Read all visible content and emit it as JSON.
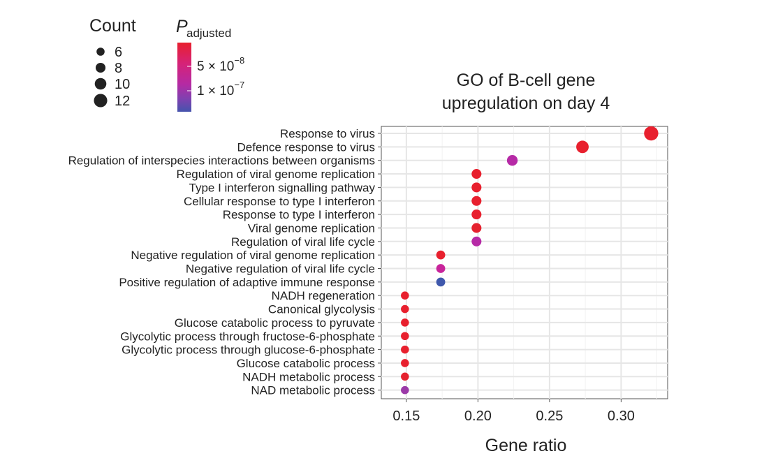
{
  "chart_data": {
    "type": "scatter",
    "title_lines": [
      "GO of B-cell gene",
      "upregulation on day 4"
    ],
    "xlabel": "Gene ratio",
    "ylabel": "",
    "xlim": [
      0.1325,
      0.3325
    ],
    "x_ticks": [
      0.15,
      0.2,
      0.25,
      0.3
    ],
    "x_tick_labels": [
      "0.15",
      "0.20",
      "0.25",
      "0.30"
    ],
    "grid": true,
    "legend_size": {
      "title": "Count",
      "entries": [
        {
          "label": "6",
          "count": 6
        },
        {
          "label": "8",
          "count": 8
        },
        {
          "label": "10",
          "count": 10
        },
        {
          "label": "12",
          "count": 12
        }
      ]
    },
    "legend_color": {
      "title_main": "P",
      "title_sub": "adjusted",
      "tick1": {
        "coef": "5 × 10",
        "exp": "−8",
        "value": 5e-08
      },
      "tick2": {
        "coef": "1 × 10",
        "exp": "−7",
        "value": 1e-07
      },
      "colors": [
        "#e8202e",
        "#d0237e",
        "#b62aa6",
        "#8a3fb0",
        "#4753ad"
      ]
    },
    "terms": [
      {
        "label": "Response to virus",
        "gene_ratio": 0.321,
        "count": 13,
        "color": "#e8202e"
      },
      {
        "label": "Defence response to virus",
        "gene_ratio": 0.273,
        "count": 11,
        "color": "#e8202e"
      },
      {
        "label": "Regulation of interspecies interactions between organisms",
        "gene_ratio": 0.224,
        "count": 9,
        "color": "#b62aa6"
      },
      {
        "label": "Regulation of viral genome replication",
        "gene_ratio": 0.199,
        "count": 8,
        "color": "#e8202e"
      },
      {
        "label": "Type I interferon signalling pathway",
        "gene_ratio": 0.199,
        "count": 8,
        "color": "#e8202e"
      },
      {
        "label": "Cellular response to type I interferon",
        "gene_ratio": 0.199,
        "count": 8,
        "color": "#e8202e"
      },
      {
        "label": "Response to type I interferon",
        "gene_ratio": 0.199,
        "count": 8,
        "color": "#e8202e"
      },
      {
        "label": "Viral genome replication",
        "gene_ratio": 0.199,
        "count": 8,
        "color": "#e5222f"
      },
      {
        "label": "Regulation of viral life cycle",
        "gene_ratio": 0.199,
        "count": 8,
        "color": "#b62aa6"
      },
      {
        "label": "Negative regulation of viral genome replication",
        "gene_ratio": 0.174,
        "count": 7,
        "color": "#e8202e"
      },
      {
        "label": "Negative regulation of viral life cycle",
        "gene_ratio": 0.174,
        "count": 7,
        "color": "#c8249b"
      },
      {
        "label": "Positive regulation of adaptive immune response",
        "gene_ratio": 0.174,
        "count": 7,
        "color": "#3f58ac"
      },
      {
        "label": "NADH regeneration",
        "gene_ratio": 0.149,
        "count": 6,
        "color": "#e8202e"
      },
      {
        "label": "Canonical glycolysis",
        "gene_ratio": 0.149,
        "count": 6,
        "color": "#e8202e"
      },
      {
        "label": "Glucose catabolic process to pyruvate",
        "gene_ratio": 0.149,
        "count": 6,
        "color": "#e8202e"
      },
      {
        "label": "Glycolytic process through fructose-6-phosphate",
        "gene_ratio": 0.149,
        "count": 6,
        "color": "#e8202e"
      },
      {
        "label": "Glycolytic process through glucose-6-phosphate",
        "gene_ratio": 0.149,
        "count": 6,
        "color": "#e8202e"
      },
      {
        "label": "Glucose catabolic process",
        "gene_ratio": 0.149,
        "count": 6,
        "color": "#e8202e"
      },
      {
        "label": "NADH metabolic process",
        "gene_ratio": 0.149,
        "count": 6,
        "color": "#e5222f"
      },
      {
        "label": "NAD metabolic process",
        "gene_ratio": 0.149,
        "count": 6,
        "color": "#9b3aa8"
      }
    ]
  }
}
